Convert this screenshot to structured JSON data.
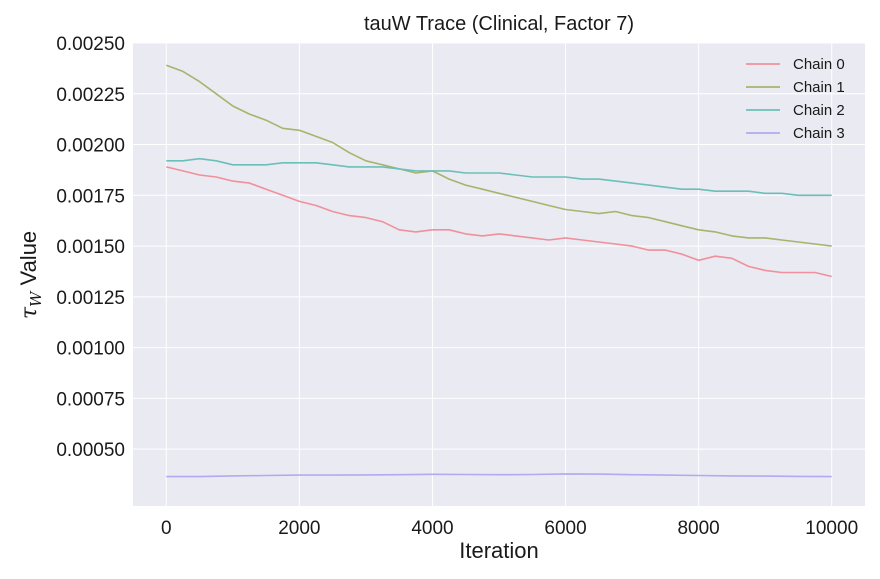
{
  "chart_data": {
    "type": "line",
    "title": "tauW Trace (Clinical, Factor 7)",
    "xlabel": "Iteration",
    "ylabel_symbol": "τ",
    "ylabel_subscript": "W",
    "ylabel_text": " Value",
    "xlim": [
      -500,
      10500
    ],
    "ylim": [
      0.00022,
      0.0025
    ],
    "xticks": [
      0,
      2000,
      4000,
      6000,
      8000,
      10000
    ],
    "xtick_labels": [
      "0",
      "2000",
      "4000",
      "6000",
      "8000",
      "10000"
    ],
    "yticks": [
      0.0005,
      0.00075,
      0.001,
      0.00125,
      0.0015,
      0.00175,
      0.002,
      0.00225,
      0.0025
    ],
    "ytick_labels": [
      "0.00050",
      "0.00075",
      "0.00100",
      "0.00125",
      "0.00150",
      "0.00175",
      "0.00200",
      "0.00225",
      "0.00250"
    ],
    "grid": true,
    "legend_position": "top-right",
    "background": "#eaeaf2",
    "series": [
      {
        "name": "Chain 0",
        "color": "#f0909b",
        "x": [
          0,
          250,
          500,
          750,
          1000,
          1250,
          1500,
          1750,
          2000,
          2250,
          2500,
          2750,
          3000,
          3250,
          3500,
          3750,
          4000,
          4250,
          4500,
          4750,
          5000,
          5250,
          5500,
          5750,
          6000,
          6250,
          6500,
          6750,
          7000,
          7250,
          7500,
          7750,
          8000,
          8250,
          8500,
          8750,
          9000,
          9250,
          9500,
          9750,
          10000
        ],
        "y": [
          0.00189,
          0.00187,
          0.00185,
          0.00184,
          0.00182,
          0.00181,
          0.00178,
          0.00175,
          0.00172,
          0.0017,
          0.00167,
          0.00165,
          0.00164,
          0.00162,
          0.00158,
          0.00157,
          0.00158,
          0.00158,
          0.00156,
          0.00155,
          0.00156,
          0.00155,
          0.00154,
          0.00153,
          0.00154,
          0.00153,
          0.00152,
          0.00151,
          0.0015,
          0.00148,
          0.00148,
          0.00146,
          0.00143,
          0.00145,
          0.00144,
          0.0014,
          0.00138,
          0.00137,
          0.00137,
          0.00137,
          0.00135
        ]
      },
      {
        "name": "Chain 1",
        "color": "#a8b36c",
        "x": [
          0,
          250,
          500,
          750,
          1000,
          1250,
          1500,
          1750,
          2000,
          2250,
          2500,
          2750,
          3000,
          3250,
          3500,
          3750,
          4000,
          4250,
          4500,
          4750,
          5000,
          5250,
          5500,
          5750,
          6000,
          6250,
          6500,
          6750,
          7000,
          7250,
          7500,
          7750,
          8000,
          8250,
          8500,
          8750,
          9000,
          9250,
          9500,
          9750,
          10000
        ],
        "y": [
          0.00239,
          0.00236,
          0.00231,
          0.00225,
          0.00219,
          0.00215,
          0.00212,
          0.00208,
          0.00207,
          0.00204,
          0.00201,
          0.00196,
          0.00192,
          0.0019,
          0.00188,
          0.00186,
          0.00187,
          0.00183,
          0.0018,
          0.00178,
          0.00176,
          0.00174,
          0.00172,
          0.0017,
          0.00168,
          0.00167,
          0.00166,
          0.00167,
          0.00165,
          0.00164,
          0.00162,
          0.0016,
          0.00158,
          0.00157,
          0.00155,
          0.00154,
          0.00154,
          0.00153,
          0.00152,
          0.00151,
          0.0015
        ]
      },
      {
        "name": "Chain 2",
        "color": "#6cbfb9",
        "x": [
          0,
          250,
          500,
          750,
          1000,
          1250,
          1500,
          1750,
          2000,
          2250,
          2500,
          2750,
          3000,
          3250,
          3500,
          3750,
          4000,
          4250,
          4500,
          4750,
          5000,
          5250,
          5500,
          5750,
          6000,
          6250,
          6500,
          6750,
          7000,
          7250,
          7500,
          7750,
          8000,
          8250,
          8500,
          8750,
          9000,
          9250,
          9500,
          9750,
          10000
        ],
        "y": [
          0.00192,
          0.00192,
          0.00193,
          0.00192,
          0.0019,
          0.0019,
          0.0019,
          0.00191,
          0.00191,
          0.00191,
          0.0019,
          0.00189,
          0.00189,
          0.00189,
          0.00188,
          0.00187,
          0.00187,
          0.00187,
          0.00186,
          0.00186,
          0.00186,
          0.00185,
          0.00184,
          0.00184,
          0.00184,
          0.00183,
          0.00183,
          0.00182,
          0.00181,
          0.0018,
          0.00179,
          0.00178,
          0.00178,
          0.00177,
          0.00177,
          0.00177,
          0.00176,
          0.00176,
          0.00175,
          0.00175,
          0.00175
        ]
      },
      {
        "name": "Chain 3",
        "color": "#b4a9f0",
        "x": [
          0,
          500,
          1000,
          1500,
          2000,
          2500,
          3000,
          3500,
          4000,
          4500,
          5000,
          5500,
          6000,
          6500,
          7000,
          7500,
          8000,
          8500,
          9000,
          9500,
          10000
        ],
        "y": [
          0.000365,
          0.000365,
          0.000368,
          0.00037,
          0.000372,
          0.000372,
          0.000373,
          0.000374,
          0.000376,
          0.000375,
          0.000374,
          0.000375,
          0.000378,
          0.000377,
          0.000374,
          0.000372,
          0.00037,
          0.000368,
          0.000367,
          0.000366,
          0.000365
        ]
      }
    ]
  }
}
